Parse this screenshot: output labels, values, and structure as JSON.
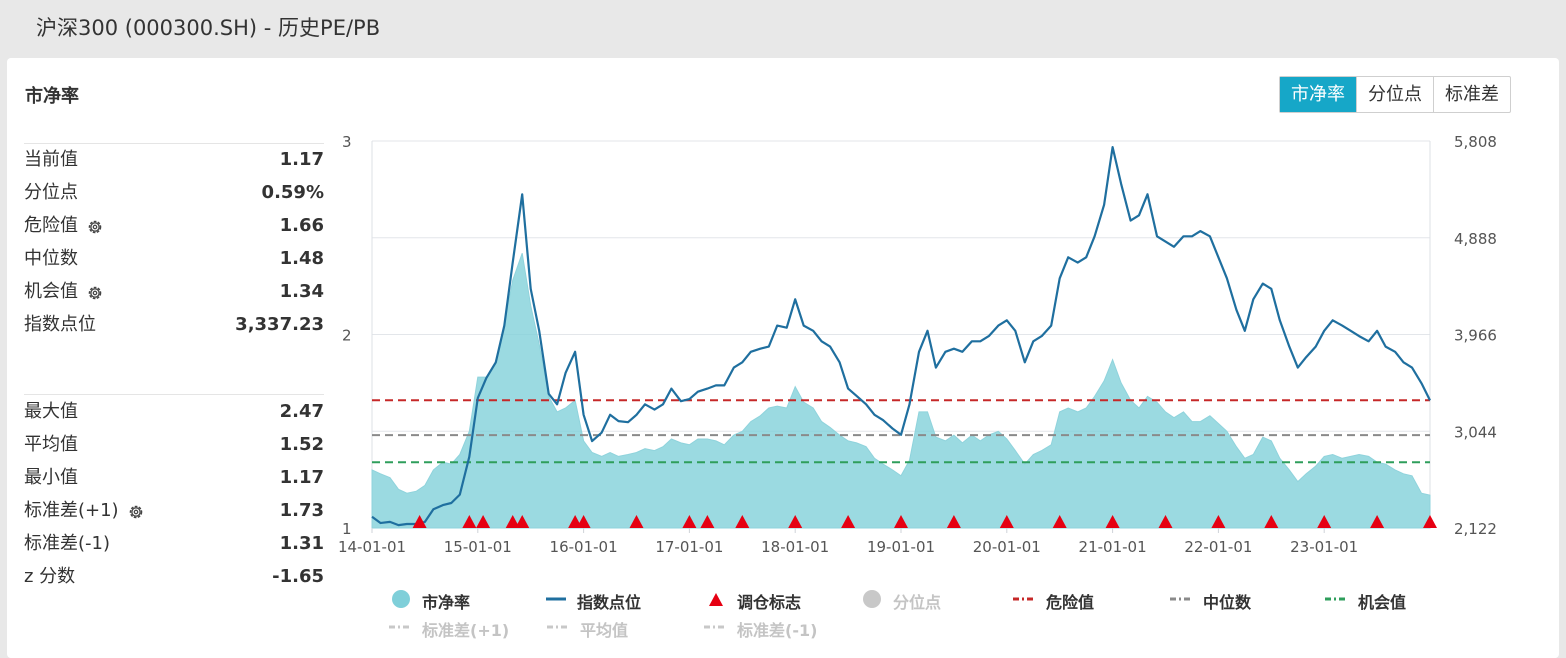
{
  "header": {
    "title": "沪深300 (000300.SH) - 历史PE/PB"
  },
  "panel": {
    "title": "市净率"
  },
  "tabs": [
    {
      "label": "市净率",
      "active": true
    },
    {
      "label": "分位点",
      "active": false
    },
    {
      "label": "标准差",
      "active": false
    }
  ],
  "stats_top": [
    {
      "label": "当前值",
      "value": "1.17",
      "gear": false
    },
    {
      "label": "分位点",
      "value": "0.59%",
      "gear": false
    },
    {
      "label": "危险值",
      "value": "1.66",
      "gear": true
    },
    {
      "label": "中位数",
      "value": "1.48",
      "gear": false
    },
    {
      "label": "机会值",
      "value": "1.34",
      "gear": true
    },
    {
      "label": "指数点位",
      "value": "3,337.23",
      "gear": false
    }
  ],
  "stats_bottom": [
    {
      "label": "最大值",
      "value": "2.47",
      "gear": false
    },
    {
      "label": "平均值",
      "value": "1.52",
      "gear": false
    },
    {
      "label": "最小值",
      "value": "1.17",
      "gear": false
    },
    {
      "label": "标准差(+1)",
      "value": "1.73",
      "gear": true
    },
    {
      "label": "标准差(-1)",
      "value": "1.31",
      "gear": false
    },
    {
      "label": "z 分数",
      "value": "-1.65",
      "gear": false
    }
  ],
  "legend": [
    {
      "label": "市净率",
      "marker": "circle",
      "color": "#7fcfd9",
      "dim": false
    },
    {
      "label": "指数点位",
      "marker": "line",
      "color": "#1f6f9f",
      "dim": false
    },
    {
      "label": "调仓标志",
      "marker": "triangle",
      "color": "#e60012",
      "dim": false
    },
    {
      "label": "分位点",
      "marker": "circle",
      "color": "#c8c8c8",
      "dim": true
    },
    {
      "label": "危险值",
      "marker": "dash",
      "color": "#c62828",
      "dim": false
    },
    {
      "label": "中位数",
      "marker": "dash",
      "color": "#8a8a8a",
      "dim": false
    },
    {
      "label": "机会值",
      "marker": "dash",
      "color": "#2e9e5b",
      "dim": false
    },
    {
      "label": "标准差(+1)",
      "marker": "dash",
      "color": "#c8c8c8",
      "dim": true
    },
    {
      "label": "平均值",
      "marker": "dash",
      "color": "#c8c8c8",
      "dim": true
    },
    {
      "label": "标准差(-1)",
      "marker": "dash",
      "color": "#c8c8c8",
      "dim": true
    }
  ],
  "chart_data": {
    "type": "area",
    "x_ticks": [
      "14-01-01",
      "15-01-01",
      "16-01-01",
      "17-01-01",
      "18-01-01",
      "19-01-01",
      "20-01-01",
      "21-01-01",
      "22-01-01",
      "23-01-01"
    ],
    "x_start": 2014.0,
    "x_end": 2024.0,
    "y_left_ticks": [
      "1",
      "2",
      "3"
    ],
    "ylim_left": [
      1,
      3
    ],
    "y_right_ticks": [
      "2,122",
      "3,044",
      "3,966",
      "4,888",
      "5,808"
    ],
    "ylim_right": [
      2122,
      5808
    ],
    "series": [
      {
        "name": "市净率",
        "type": "area",
        "color": "#7fcfd9",
        "axis": "left",
        "points": [
          [
            2014.0,
            1.3
          ],
          [
            2014.08,
            1.28
          ],
          [
            2014.17,
            1.26
          ],
          [
            2014.25,
            1.2
          ],
          [
            2014.33,
            1.18
          ],
          [
            2014.42,
            1.19
          ],
          [
            2014.5,
            1.22
          ],
          [
            2014.58,
            1.3
          ],
          [
            2014.67,
            1.34
          ],
          [
            2014.75,
            1.33
          ],
          [
            2014.83,
            1.38
          ],
          [
            2014.92,
            1.5
          ],
          [
            2015.0,
            1.78
          ],
          [
            2015.08,
            1.78
          ],
          [
            2015.17,
            1.85
          ],
          [
            2015.25,
            2.05
          ],
          [
            2015.33,
            2.28
          ],
          [
            2015.42,
            2.42
          ],
          [
            2015.5,
            2.15
          ],
          [
            2015.58,
            1.95
          ],
          [
            2015.67,
            1.68
          ],
          [
            2015.75,
            1.6
          ],
          [
            2015.83,
            1.62
          ],
          [
            2015.92,
            1.66
          ],
          [
            2016.0,
            1.45
          ],
          [
            2016.08,
            1.39
          ],
          [
            2016.17,
            1.37
          ],
          [
            2016.25,
            1.39
          ],
          [
            2016.33,
            1.37
          ],
          [
            2016.42,
            1.38
          ],
          [
            2016.5,
            1.39
          ],
          [
            2016.58,
            1.41
          ],
          [
            2016.67,
            1.4
          ],
          [
            2016.75,
            1.42
          ],
          [
            2016.83,
            1.46
          ],
          [
            2016.92,
            1.44
          ],
          [
            2017.0,
            1.43
          ],
          [
            2017.08,
            1.46
          ],
          [
            2017.17,
            1.46
          ],
          [
            2017.25,
            1.45
          ],
          [
            2017.33,
            1.43
          ],
          [
            2017.42,
            1.48
          ],
          [
            2017.5,
            1.5
          ],
          [
            2017.58,
            1.55
          ],
          [
            2017.67,
            1.58
          ],
          [
            2017.75,
            1.62
          ],
          [
            2017.83,
            1.63
          ],
          [
            2017.92,
            1.62
          ],
          [
            2018.0,
            1.73
          ],
          [
            2018.08,
            1.65
          ],
          [
            2018.17,
            1.62
          ],
          [
            2018.25,
            1.55
          ],
          [
            2018.33,
            1.52
          ],
          [
            2018.42,
            1.48
          ],
          [
            2018.5,
            1.45
          ],
          [
            2018.58,
            1.44
          ],
          [
            2018.67,
            1.42
          ],
          [
            2018.75,
            1.36
          ],
          [
            2018.83,
            1.33
          ],
          [
            2018.92,
            1.3
          ],
          [
            2019.0,
            1.27
          ],
          [
            2019.08,
            1.35
          ],
          [
            2019.17,
            1.6
          ],
          [
            2019.25,
            1.6
          ],
          [
            2019.33,
            1.47
          ],
          [
            2019.42,
            1.45
          ],
          [
            2019.5,
            1.48
          ],
          [
            2019.58,
            1.44
          ],
          [
            2019.67,
            1.48
          ],
          [
            2019.75,
            1.45
          ],
          [
            2019.83,
            1.48
          ],
          [
            2019.92,
            1.5
          ],
          [
            2020.0,
            1.46
          ],
          [
            2020.08,
            1.4
          ],
          [
            2020.17,
            1.33
          ],
          [
            2020.25,
            1.38
          ],
          [
            2020.33,
            1.4
          ],
          [
            2020.42,
            1.43
          ],
          [
            2020.5,
            1.6
          ],
          [
            2020.58,
            1.62
          ],
          [
            2020.67,
            1.6
          ],
          [
            2020.75,
            1.62
          ],
          [
            2020.83,
            1.68
          ],
          [
            2020.92,
            1.76
          ],
          [
            2021.0,
            1.87
          ],
          [
            2021.08,
            1.75
          ],
          [
            2021.17,
            1.66
          ],
          [
            2021.25,
            1.62
          ],
          [
            2021.33,
            1.68
          ],
          [
            2021.42,
            1.65
          ],
          [
            2021.5,
            1.6
          ],
          [
            2021.58,
            1.57
          ],
          [
            2021.67,
            1.6
          ],
          [
            2021.75,
            1.55
          ],
          [
            2021.83,
            1.55
          ],
          [
            2021.92,
            1.58
          ],
          [
            2022.0,
            1.54
          ],
          [
            2022.08,
            1.5
          ],
          [
            2022.17,
            1.42
          ],
          [
            2022.25,
            1.36
          ],
          [
            2022.33,
            1.38
          ],
          [
            2022.42,
            1.47
          ],
          [
            2022.5,
            1.45
          ],
          [
            2022.58,
            1.36
          ],
          [
            2022.67,
            1.3
          ],
          [
            2022.75,
            1.24
          ],
          [
            2022.83,
            1.28
          ],
          [
            2022.92,
            1.32
          ],
          [
            2023.0,
            1.37
          ],
          [
            2023.08,
            1.38
          ],
          [
            2023.17,
            1.36
          ],
          [
            2023.25,
            1.37
          ],
          [
            2023.33,
            1.38
          ],
          [
            2023.42,
            1.37
          ],
          [
            2023.5,
            1.34
          ],
          [
            2023.58,
            1.33
          ],
          [
            2023.67,
            1.3
          ],
          [
            2023.75,
            1.28
          ],
          [
            2023.83,
            1.27
          ],
          [
            2023.92,
            1.18
          ],
          [
            2024.0,
            1.17
          ]
        ]
      },
      {
        "name": "指数点位",
        "type": "line",
        "color": "#1f6f9f",
        "axis": "right",
        "points": [
          [
            2014.0,
            2230
          ],
          [
            2014.08,
            2170
          ],
          [
            2014.17,
            2180
          ],
          [
            2014.25,
            2150
          ],
          [
            2014.33,
            2160
          ],
          [
            2014.42,
            2160
          ],
          [
            2014.5,
            2180
          ],
          [
            2014.58,
            2300
          ],
          [
            2014.67,
            2340
          ],
          [
            2014.75,
            2360
          ],
          [
            2014.83,
            2440
          ],
          [
            2014.92,
            2800
          ],
          [
            2015.0,
            3360
          ],
          [
            2015.08,
            3550
          ],
          [
            2015.17,
            3700
          ],
          [
            2015.25,
            4050
          ],
          [
            2015.33,
            4650
          ],
          [
            2015.42,
            5300
          ],
          [
            2015.5,
            4400
          ],
          [
            2015.58,
            4000
          ],
          [
            2015.67,
            3400
          ],
          [
            2015.75,
            3300
          ],
          [
            2015.83,
            3600
          ],
          [
            2015.92,
            3800
          ],
          [
            2016.0,
            3200
          ],
          [
            2016.08,
            2950
          ],
          [
            2016.17,
            3030
          ],
          [
            2016.25,
            3200
          ],
          [
            2016.33,
            3140
          ],
          [
            2016.42,
            3130
          ],
          [
            2016.5,
            3200
          ],
          [
            2016.58,
            3300
          ],
          [
            2016.67,
            3250
          ],
          [
            2016.75,
            3300
          ],
          [
            2016.83,
            3450
          ],
          [
            2016.92,
            3330
          ],
          [
            2017.0,
            3350
          ],
          [
            2017.08,
            3420
          ],
          [
            2017.17,
            3450
          ],
          [
            2017.25,
            3480
          ],
          [
            2017.33,
            3480
          ],
          [
            2017.42,
            3650
          ],
          [
            2017.5,
            3700
          ],
          [
            2017.58,
            3800
          ],
          [
            2017.67,
            3830
          ],
          [
            2017.75,
            3850
          ],
          [
            2017.83,
            4050
          ],
          [
            2017.92,
            4030
          ],
          [
            2018.0,
            4300
          ],
          [
            2018.08,
            4050
          ],
          [
            2018.17,
            4000
          ],
          [
            2018.25,
            3900
          ],
          [
            2018.33,
            3850
          ],
          [
            2018.42,
            3700
          ],
          [
            2018.5,
            3450
          ],
          [
            2018.58,
            3380
          ],
          [
            2018.67,
            3300
          ],
          [
            2018.75,
            3200
          ],
          [
            2018.83,
            3150
          ],
          [
            2018.92,
            3070
          ],
          [
            2019.0,
            3010
          ],
          [
            2019.08,
            3300
          ],
          [
            2019.17,
            3800
          ],
          [
            2019.25,
            4000
          ],
          [
            2019.33,
            3650
          ],
          [
            2019.42,
            3800
          ],
          [
            2019.5,
            3830
          ],
          [
            2019.58,
            3800
          ],
          [
            2019.67,
            3900
          ],
          [
            2019.75,
            3900
          ],
          [
            2019.83,
            3950
          ],
          [
            2019.92,
            4050
          ],
          [
            2020.0,
            4100
          ],
          [
            2020.08,
            4000
          ],
          [
            2020.17,
            3700
          ],
          [
            2020.25,
            3900
          ],
          [
            2020.33,
            3950
          ],
          [
            2020.42,
            4050
          ],
          [
            2020.5,
            4500
          ],
          [
            2020.58,
            4700
          ],
          [
            2020.67,
            4650
          ],
          [
            2020.75,
            4700
          ],
          [
            2020.83,
            4900
          ],
          [
            2020.92,
            5200
          ],
          [
            2021.0,
            5750
          ],
          [
            2021.08,
            5400
          ],
          [
            2021.17,
            5050
          ],
          [
            2021.25,
            5100
          ],
          [
            2021.33,
            5300
          ],
          [
            2021.42,
            4900
          ],
          [
            2021.5,
            4850
          ],
          [
            2021.58,
            4800
          ],
          [
            2021.67,
            4900
          ],
          [
            2021.75,
            4900
          ],
          [
            2021.83,
            4950
          ],
          [
            2021.92,
            4900
          ],
          [
            2022.0,
            4700
          ],
          [
            2022.08,
            4500
          ],
          [
            2022.17,
            4200
          ],
          [
            2022.25,
            4000
          ],
          [
            2022.33,
            4300
          ],
          [
            2022.42,
            4450
          ],
          [
            2022.5,
            4400
          ],
          [
            2022.58,
            4100
          ],
          [
            2022.67,
            3850
          ],
          [
            2022.75,
            3650
          ],
          [
            2022.83,
            3750
          ],
          [
            2022.92,
            3850
          ],
          [
            2023.0,
            4000
          ],
          [
            2023.08,
            4100
          ],
          [
            2023.17,
            4050
          ],
          [
            2023.25,
            4000
          ],
          [
            2023.33,
            3950
          ],
          [
            2023.42,
            3900
          ],
          [
            2023.5,
            4000
          ],
          [
            2023.58,
            3850
          ],
          [
            2023.67,
            3800
          ],
          [
            2023.75,
            3700
          ],
          [
            2023.83,
            3650
          ],
          [
            2023.92,
            3500
          ],
          [
            2024.0,
            3337
          ]
        ]
      }
    ],
    "reference_lines": [
      {
        "name": "危险值",
        "value": 1.66,
        "color": "#c62828"
      },
      {
        "name": "中位数",
        "value": 1.48,
        "color": "#8a8a8a"
      },
      {
        "name": "机会值",
        "value": 1.34,
        "color": "#2e9e5b"
      }
    ],
    "markers": {
      "name": "调仓标志",
      "color": "#e60012",
      "x": [
        2014.45,
        2014.92,
        2015.05,
        2015.33,
        2015.42,
        2015.92,
        2016.0,
        2016.5,
        2017.0,
        2017.17,
        2017.5,
        2018.0,
        2018.5,
        2019.0,
        2019.5,
        2020.0,
        2020.5,
        2021.0,
        2021.5,
        2022.0,
        2022.5,
        2023.0,
        2023.5,
        2024.0
      ]
    },
    "grid": true
  }
}
